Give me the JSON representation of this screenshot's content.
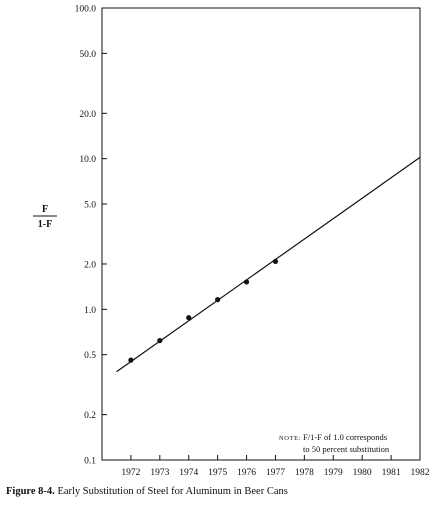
{
  "chart_data": {
    "type": "line",
    "yscale": "log",
    "ylim": [
      0.1,
      100.0
    ],
    "xlim": [
      1971,
      1982
    ],
    "y_ticks": [
      {
        "value": 100,
        "label": "100.0"
      },
      {
        "value": 50,
        "label": "50.0"
      },
      {
        "value": 20,
        "label": "20.0"
      },
      {
        "value": 10,
        "label": "10.0"
      },
      {
        "value": 5,
        "label": "5.0"
      },
      {
        "value": 2,
        "label": "2.0"
      },
      {
        "value": 1,
        "label": "1.0"
      },
      {
        "value": 0.5,
        "label": "0.5"
      },
      {
        "value": 0.2,
        "label": "0.2"
      },
      {
        "value": 0.1,
        "label": "0.1"
      }
    ],
    "x_ticks": [
      {
        "value": 1972,
        "label": "1972"
      },
      {
        "value": 1973,
        "label": "1973"
      },
      {
        "value": 1974,
        "label": "1974"
      },
      {
        "value": 1975,
        "label": "1975"
      },
      {
        "value": 1976,
        "label": "1976"
      },
      {
        "value": 1977,
        "label": "1977"
      },
      {
        "value": 1978,
        "label": "1978"
      },
      {
        "value": 1979,
        "label": "1979"
      },
      {
        "value": 1980,
        "label": "1980"
      },
      {
        "value": 1981,
        "label": "1981"
      },
      {
        "value": 1982,
        "label": "1982"
      }
    ],
    "ylabel_numerator": "F",
    "ylabel_denominator": "1-F",
    "points": [
      {
        "x": 1972,
        "y": 0.46
      },
      {
        "x": 1973,
        "y": 0.62
      },
      {
        "x": 1974,
        "y": 0.88
      },
      {
        "x": 1975,
        "y": 1.16
      },
      {
        "x": 1976,
        "y": 1.52
      },
      {
        "x": 1977,
        "y": 2.08
      }
    ],
    "fit_line": [
      {
        "x": 1971.5,
        "y": 0.385
      },
      {
        "x": 1982,
        "y": 10.2
      }
    ],
    "note": {
      "prefix": "NOTE:",
      "line1": "F/1-F of 1.0 corresponds",
      "line2": "to 50 percent substitution"
    },
    "grid": false
  },
  "caption": {
    "figure_label": "Figure 8-4.",
    "text": "Early Substitution of Steel for Aluminum in Beer Cans"
  }
}
